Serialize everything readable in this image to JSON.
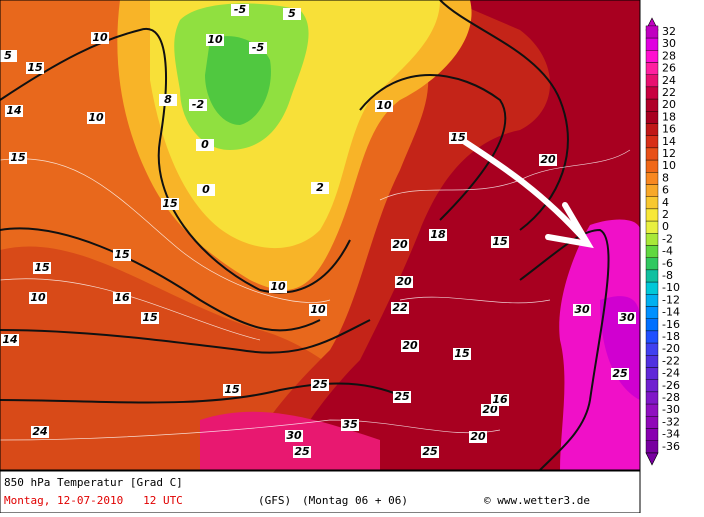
{
  "map": {
    "title": "850 hPa Temperatur [Grad C]",
    "date": "Montag, 12-07-2010   12 UTC",
    "model": "(GFS)",
    "run": "(Montag 06 + 06)",
    "credit": "© www.wetter3.de",
    "scale": [
      {
        "value": 32,
        "color": "#c000c0"
      },
      {
        "value": 30,
        "color": "#e000e0"
      },
      {
        "value": 28,
        "color": "#ff10d0"
      },
      {
        "value": 26,
        "color": "#ff20a0"
      },
      {
        "value": 24,
        "color": "#e81070"
      },
      {
        "value": 22,
        "color": "#c80040"
      },
      {
        "value": 20,
        "color": "#b00028"
      },
      {
        "value": 18,
        "color": "#a80020"
      },
      {
        "value": 16,
        "color": "#c01818"
      },
      {
        "value": 14,
        "color": "#d83018"
      },
      {
        "value": 12,
        "color": "#e85018"
      },
      {
        "value": 10,
        "color": "#f06818"
      },
      {
        "value": 8,
        "color": "#f88820"
      },
      {
        "value": 6,
        "color": "#f8a828"
      },
      {
        "value": 4,
        "color": "#f8c830"
      },
      {
        "value": 2,
        "color": "#f8e838"
      },
      {
        "value": 0,
        "color": "#e8f040"
      },
      {
        "value": -2,
        "color": "#a8e838"
      },
      {
        "value": -4,
        "color": "#60d840"
      },
      {
        "value": -6,
        "color": "#30c860"
      },
      {
        "value": -8,
        "color": "#10c0a0"
      },
      {
        "value": -10,
        "color": "#00c8d8"
      },
      {
        "value": -12,
        "color": "#00b0f0"
      },
      {
        "value": -14,
        "color": "#0090ff"
      },
      {
        "value": -16,
        "color": "#0070ff"
      },
      {
        "value": -18,
        "color": "#2050ff"
      },
      {
        "value": -20,
        "color": "#4040f0"
      },
      {
        "value": -22,
        "color": "#5030e0"
      },
      {
        "value": -24,
        "color": "#6028d8"
      },
      {
        "value": -26,
        "color": "#7020d0"
      },
      {
        "value": -28,
        "color": "#8018c8"
      },
      {
        "value": -30,
        "color": "#9010c0"
      },
      {
        "value": -32,
        "color": "#9008b8"
      },
      {
        "value": -34,
        "color": "#8800b0"
      },
      {
        "value": -36,
        "color": "#7800a0"
      }
    ],
    "contour_labels": [
      "10",
      "15",
      "5",
      "10",
      "5",
      "-5",
      "-5",
      "-2",
      "0",
      "0",
      "10",
      "15",
      "15",
      "10",
      "10",
      "15",
      "20",
      "20",
      "15",
      "15",
      "20",
      "25",
      "20",
      "15",
      "25",
      "30",
      "35",
      "20",
      "25",
      "30",
      "20",
      "25",
      "25",
      "30",
      "15",
      "10",
      "15",
      "15",
      "10",
      "14",
      "16",
      "18",
      "16",
      "22",
      "24",
      "14",
      "2",
      "8"
    ]
  }
}
